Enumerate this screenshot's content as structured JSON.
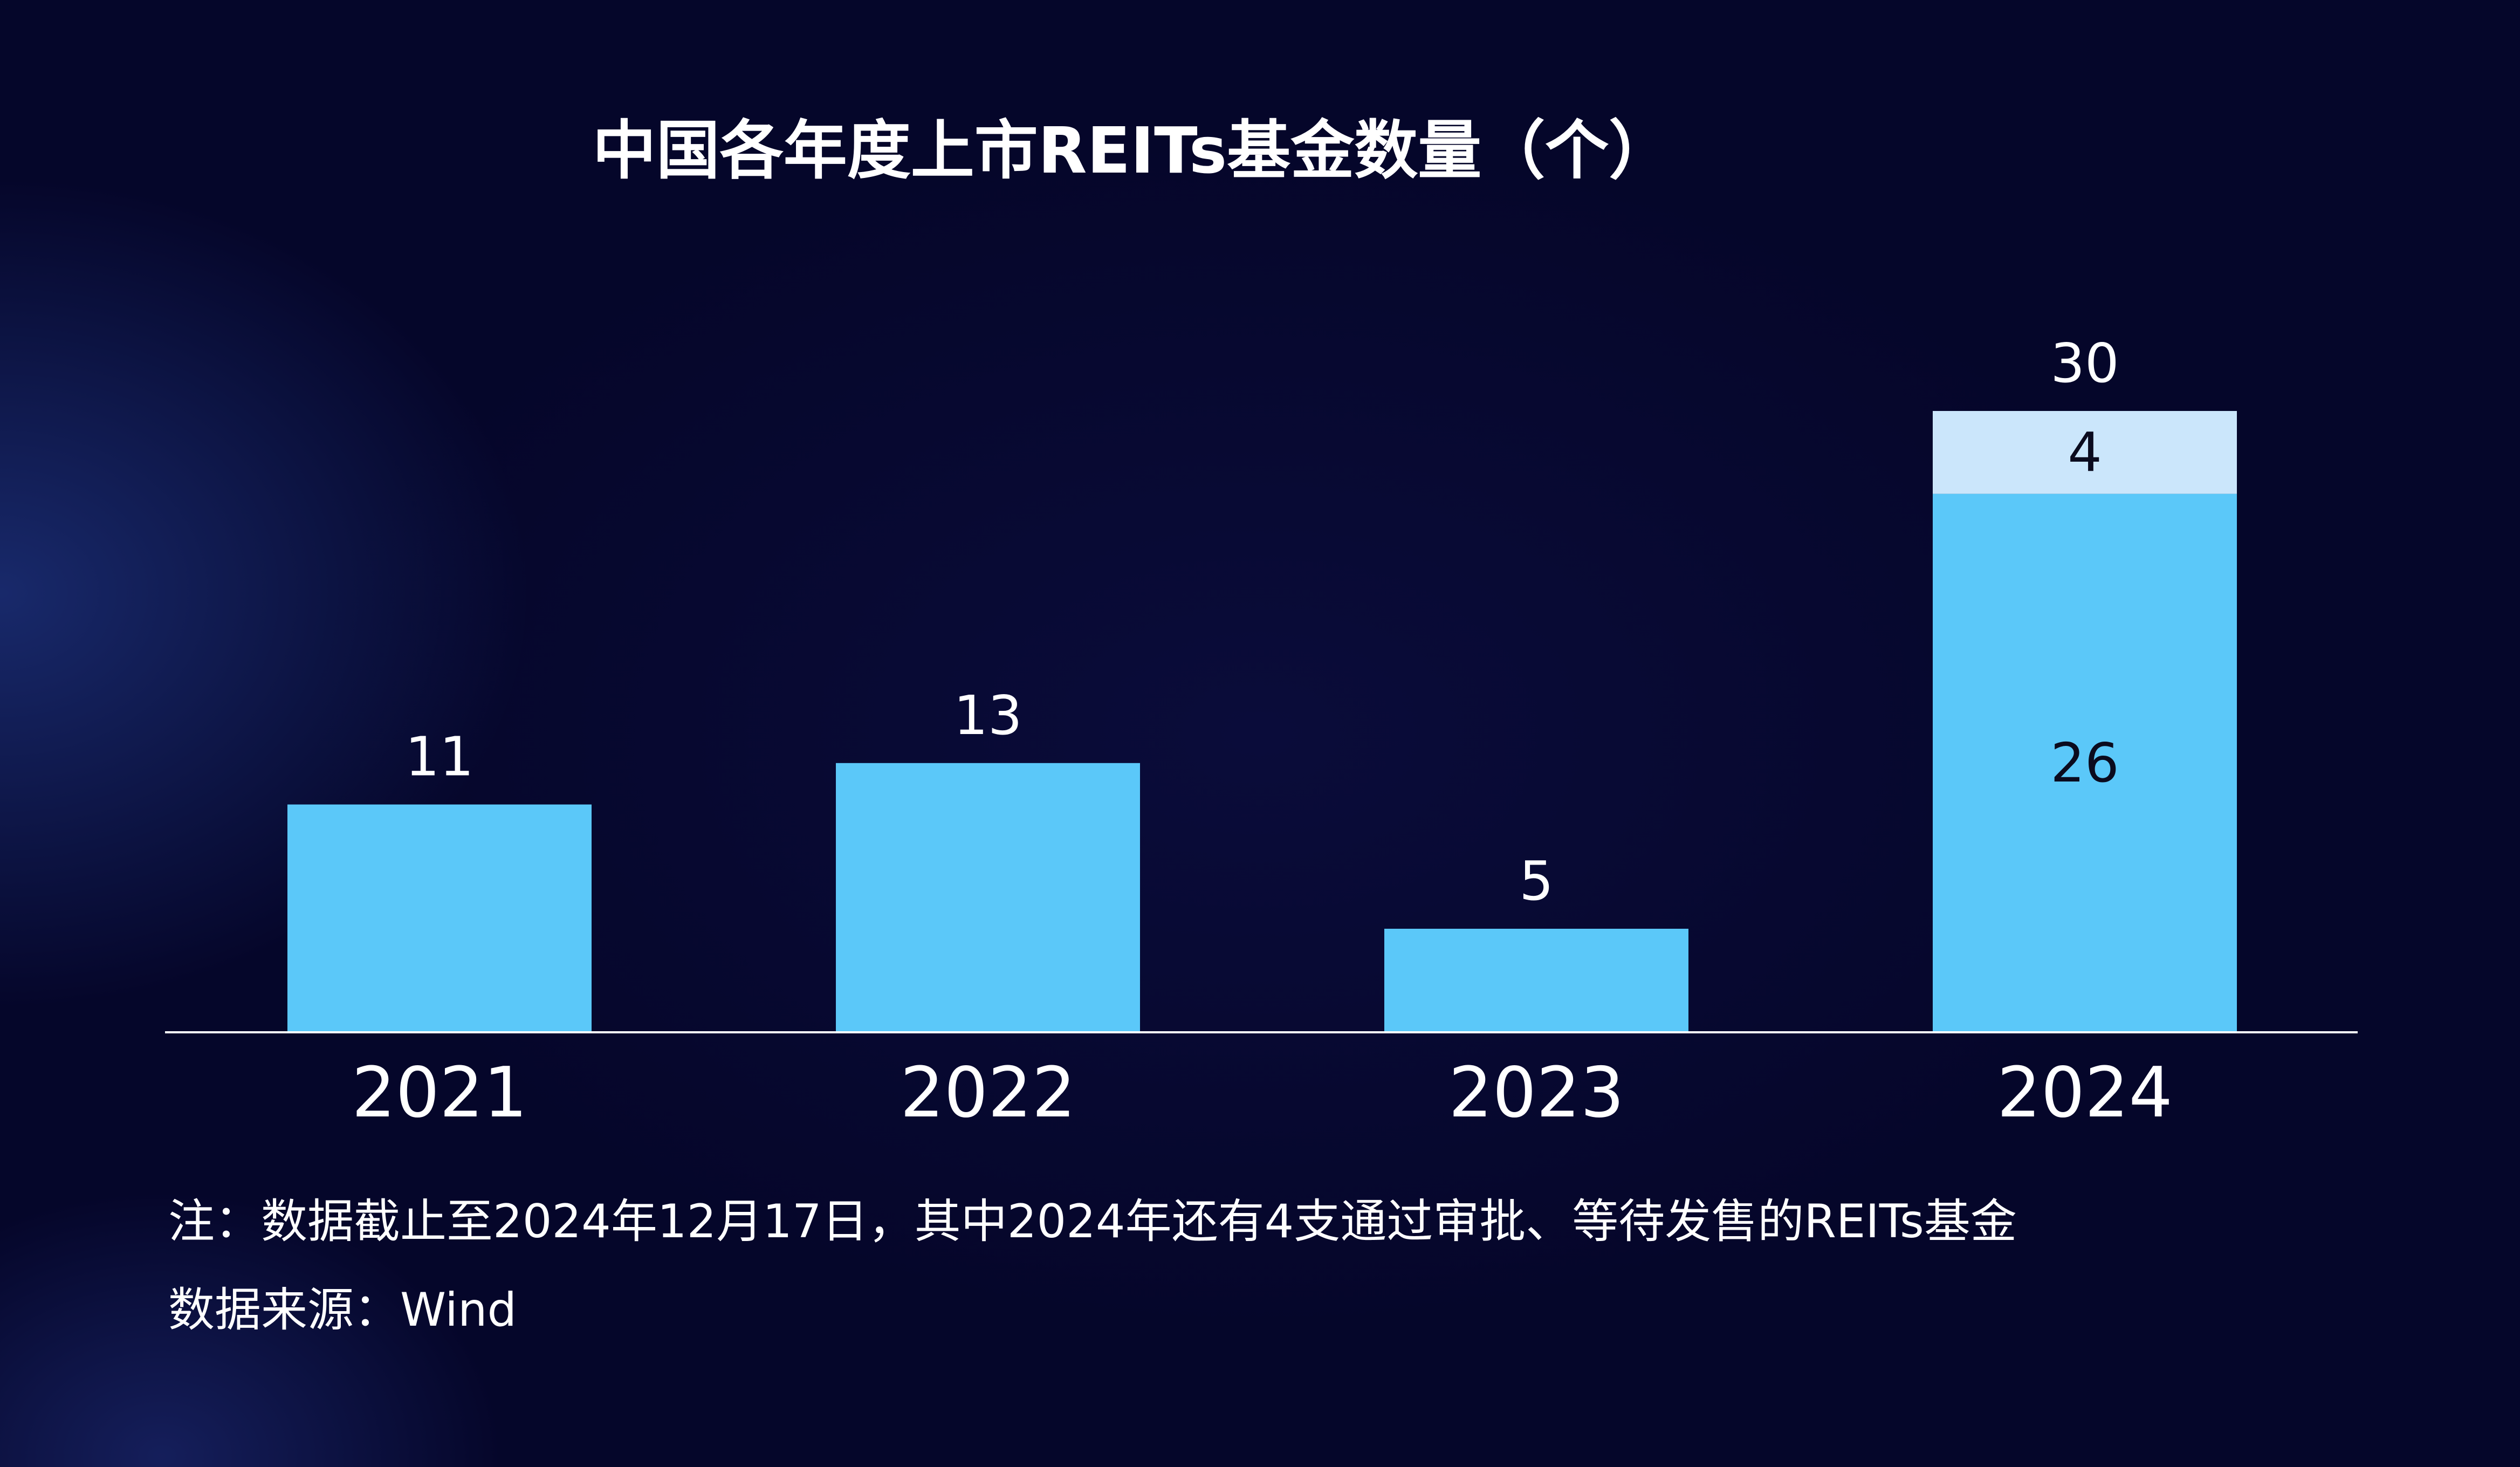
{
  "chart_data": {
    "type": "bar",
    "title": "中国各年度上市REITs基金数量（个）",
    "categories": [
      "2021",
      "2022",
      "2023",
      "2024"
    ],
    "series": [
      {
        "values": [
          11,
          13,
          5,
          26
        ]
      },
      {
        "values": [
          0,
          0,
          0,
          4
        ]
      }
    ],
    "totals": [
      11,
      13,
      5,
      30
    ],
    "ylim": [
      0,
      32
    ],
    "grid": false,
    "stacked": true
  },
  "colors": {
    "background": "#06062a",
    "bar_primary": "#5bc8f9",
    "bar_secondary": "#cbe6fb",
    "axis": "#ffffff",
    "text": "#ffffff",
    "inner_label": "#0b0b1e"
  },
  "notes": {
    "line1": "注：数据截止至2024年12月17日，其中2024年还有4支通过审批、等待发售的REITs基金",
    "line2": "数据来源：Wind"
  }
}
